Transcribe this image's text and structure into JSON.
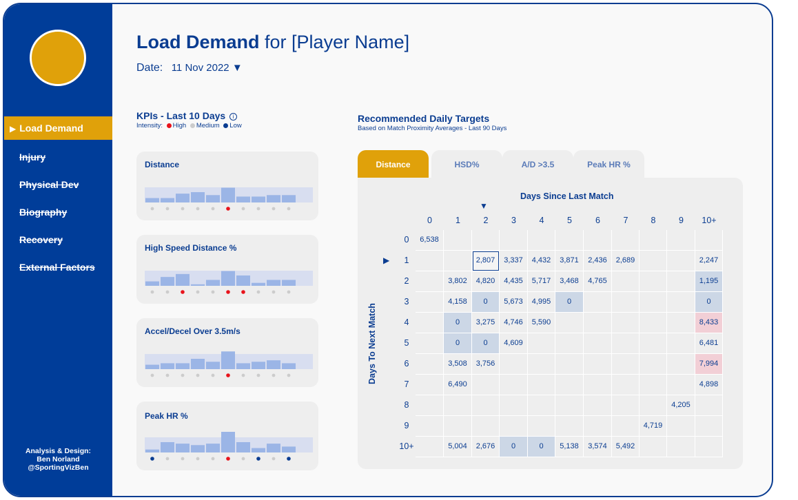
{
  "sidebar": {
    "items": [
      {
        "label": "Load Demand",
        "active": true
      },
      {
        "label": "Injury"
      },
      {
        "label": "Physical Dev"
      },
      {
        "label": "Biography"
      },
      {
        "label": "Recovery"
      },
      {
        "label": "External Factors"
      }
    ],
    "credit": [
      "Analysis & Design:",
      "Ben Norland",
      "@SportingVizBen"
    ]
  },
  "header": {
    "title_bold": "Load Demand",
    "title_rest": " for [Player Name]",
    "date_label": "Date:",
    "date_value": "11 Nov 2022 ▼"
  },
  "kpi": {
    "title": "KPIs - Last 10 Days",
    "info_icon": "ⓘ",
    "intensity_label": "Intensity:",
    "legend": [
      "High",
      "Medium",
      "Low"
    ],
    "colors": {
      "high": "#e8131b",
      "medium": "#cccccc",
      "low": "#0b3d91",
      "bar": "#9bb5e6",
      "band": "#d8def0"
    },
    "cards": [
      {
        "label": "Distance",
        "values": [
          3,
          3,
          6,
          7,
          5,
          10,
          4,
          4,
          5,
          5
        ],
        "dots": [
          "m",
          "m",
          "m",
          "m",
          "m",
          "h",
          "m",
          "m",
          "m",
          "m"
        ]
      },
      {
        "label": "High Speed Distance %",
        "values": [
          3,
          6,
          8,
          1,
          4,
          10,
          7,
          2,
          4,
          4
        ],
        "dots": [
          "m",
          "m",
          "h",
          "m",
          "m",
          "h",
          "h",
          "m",
          "m",
          "m"
        ]
      },
      {
        "label": "Accel/Decel Over 3.5m/s",
        "values": [
          3,
          4,
          4,
          7,
          5,
          12,
          4,
          5,
          6,
          4
        ],
        "dots": [
          "m",
          "m",
          "m",
          "m",
          "m",
          "h",
          "m",
          "m",
          "m",
          "m"
        ]
      },
      {
        "label": "Peak HR %",
        "values": [
          2,
          7,
          6,
          5,
          6,
          14,
          7,
          3,
          6,
          4
        ],
        "dots": [
          "l",
          "m",
          "m",
          "m",
          "m",
          "h",
          "m",
          "l",
          "m",
          "l"
        ]
      }
    ]
  },
  "targets": {
    "title": "Recommended Daily Targets",
    "subtitle": "Based on Match Proximity Averages - Last 90 Days",
    "tabs": [
      "Distance",
      "HSD%",
      "A/D >3.5",
      "Peak HR %"
    ],
    "x_title": "Days Since Last Match",
    "y_title": "Days To Next Match",
    "marker": "▼",
    "row_marker": "▶",
    "columns": [
      "0",
      "1",
      "2",
      "3",
      "4",
      "5",
      "6",
      "7",
      "8",
      "9",
      "10+"
    ],
    "rows": [
      {
        "label": "0",
        "cells": [
          "6,538",
          "",
          "",
          "",
          "",
          "",
          "",
          "",
          "",
          "",
          ""
        ]
      },
      {
        "label": "1",
        "cells": [
          "",
          "",
          "2,807",
          "3,337",
          "4,432",
          "3,871",
          "2,436",
          "2,689",
          "",
          "",
          "2,247"
        ]
      },
      {
        "label": "2",
        "cells": [
          "",
          "3,802",
          "4,820",
          "4,435",
          "5,717",
          "3,468",
          "4,765",
          "",
          "",
          "",
          "1,195"
        ]
      },
      {
        "label": "3",
        "cells": [
          "",
          "4,158",
          "0",
          "5,673",
          "4,995",
          "0",
          "",
          "",
          "",
          "",
          "0"
        ]
      },
      {
        "label": "4",
        "cells": [
          "",
          "0",
          "3,275",
          "4,746",
          "5,590",
          "",
          "",
          "",
          "",
          "",
          "8,433"
        ]
      },
      {
        "label": "5",
        "cells": [
          "",
          "0",
          "0",
          "4,609",
          "",
          "",
          "",
          "",
          "",
          "",
          "6,481"
        ]
      },
      {
        "label": "6",
        "cells": [
          "",
          "3,508",
          "3,756",
          "",
          "",
          "",
          "",
          "",
          "",
          "",
          "7,994"
        ]
      },
      {
        "label": "7",
        "cells": [
          "",
          "6,490",
          "",
          "",
          "",
          "",
          "",
          "",
          "",
          "",
          "4,898"
        ]
      },
      {
        "label": "8",
        "cells": [
          "",
          "",
          "",
          "",
          "",
          "",
          "",
          "",
          "",
          "4,205",
          ""
        ]
      },
      {
        "label": "9",
        "cells": [
          "",
          "",
          "",
          "",
          "",
          "",
          "",
          "",
          "4,719",
          "",
          ""
        ]
      },
      {
        "label": "10+",
        "cells": [
          "",
          "5,004",
          "2,676",
          "0",
          "0",
          "5,138",
          "3,574",
          "5,492",
          "",
          "",
          ""
        ]
      }
    ],
    "highlight": [
      [
        2,
        10
      ],
      [
        3,
        2
      ],
      [
        3,
        5
      ],
      [
        3,
        10
      ],
      [
        4,
        1
      ],
      [
        5,
        1
      ],
      [
        5,
        2
      ],
      [
        10,
        3
      ],
      [
        10,
        4
      ]
    ],
    "red": [
      [
        4,
        10
      ],
      [
        6,
        10
      ]
    ],
    "selected": [
      1,
      2
    ]
  }
}
